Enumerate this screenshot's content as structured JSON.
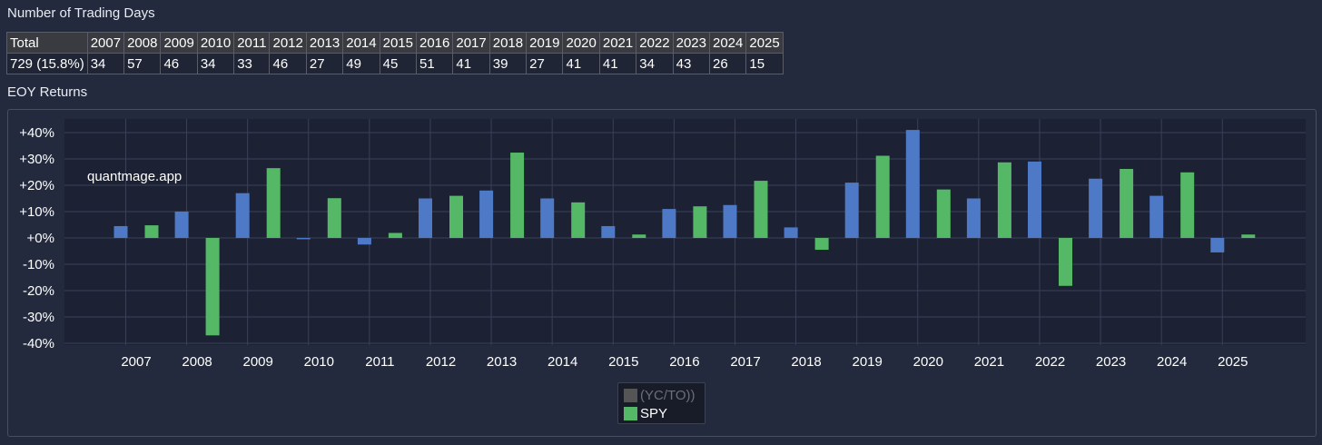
{
  "headings": {
    "trading_days": "Number of Trading Days",
    "eoy_returns": "EOY Returns"
  },
  "trading_days": {
    "header": [
      "Total",
      "2007",
      "2008",
      "2009",
      "2010",
      "2011",
      "2012",
      "2013",
      "2014",
      "2015",
      "2016",
      "2017",
      "2018",
      "2019",
      "2020",
      "2021",
      "2022",
      "2023",
      "2024",
      "2025"
    ],
    "values": [
      "729 (15.8%)",
      "34",
      "57",
      "46",
      "34",
      "33",
      "46",
      "27",
      "49",
      "45",
      "51",
      "41",
      "39",
      "27",
      "41",
      "41",
      "34",
      "43",
      "26",
      "15"
    ]
  },
  "watermark": "quantmage.app",
  "chart_data": {
    "type": "bar",
    "categories": [
      "2007",
      "2008",
      "2009",
      "2010",
      "2011",
      "2012",
      "2013",
      "2014",
      "2015",
      "2016",
      "2017",
      "2018",
      "2019",
      "2020",
      "2021",
      "2022",
      "2023",
      "2024",
      "2025"
    ],
    "series": [
      {
        "name": "(YC/TO))",
        "color": "#4e79c7",
        "values": [
          4.5,
          10,
          17,
          -0.5,
          -2.5,
          15,
          18,
          15,
          4.5,
          11,
          12.5,
          4,
          21,
          41,
          15,
          29,
          22.5,
          16,
          -5.5
        ]
      },
      {
        "name": "SPY",
        "color": "#55b866",
        "values": [
          4.8,
          -37,
          26.5,
          15.1,
          1.9,
          16,
          32.4,
          13.5,
          1.3,
          12,
          21.7,
          -4.5,
          31.2,
          18.4,
          28.7,
          -18.2,
          26.2,
          24.9,
          1.3
        ]
      }
    ],
    "ylim": [
      -40,
      45
    ],
    "yticks": [
      -40,
      -30,
      -20,
      -10,
      0,
      10,
      20,
      30,
      40
    ],
    "ytick_labels": [
      "-40%",
      "-30%",
      "-20%",
      "-10%",
      "+0%",
      "+10%",
      "+20%",
      "+30%",
      "+40%"
    ],
    "grid": true,
    "legend": {
      "position": "bottom-center",
      "entries": [
        "(YC/TO))",
        "SPY"
      ],
      "colors": [
        "#555555",
        "#55b866"
      ],
      "dimmed": [
        true,
        false
      ]
    }
  }
}
